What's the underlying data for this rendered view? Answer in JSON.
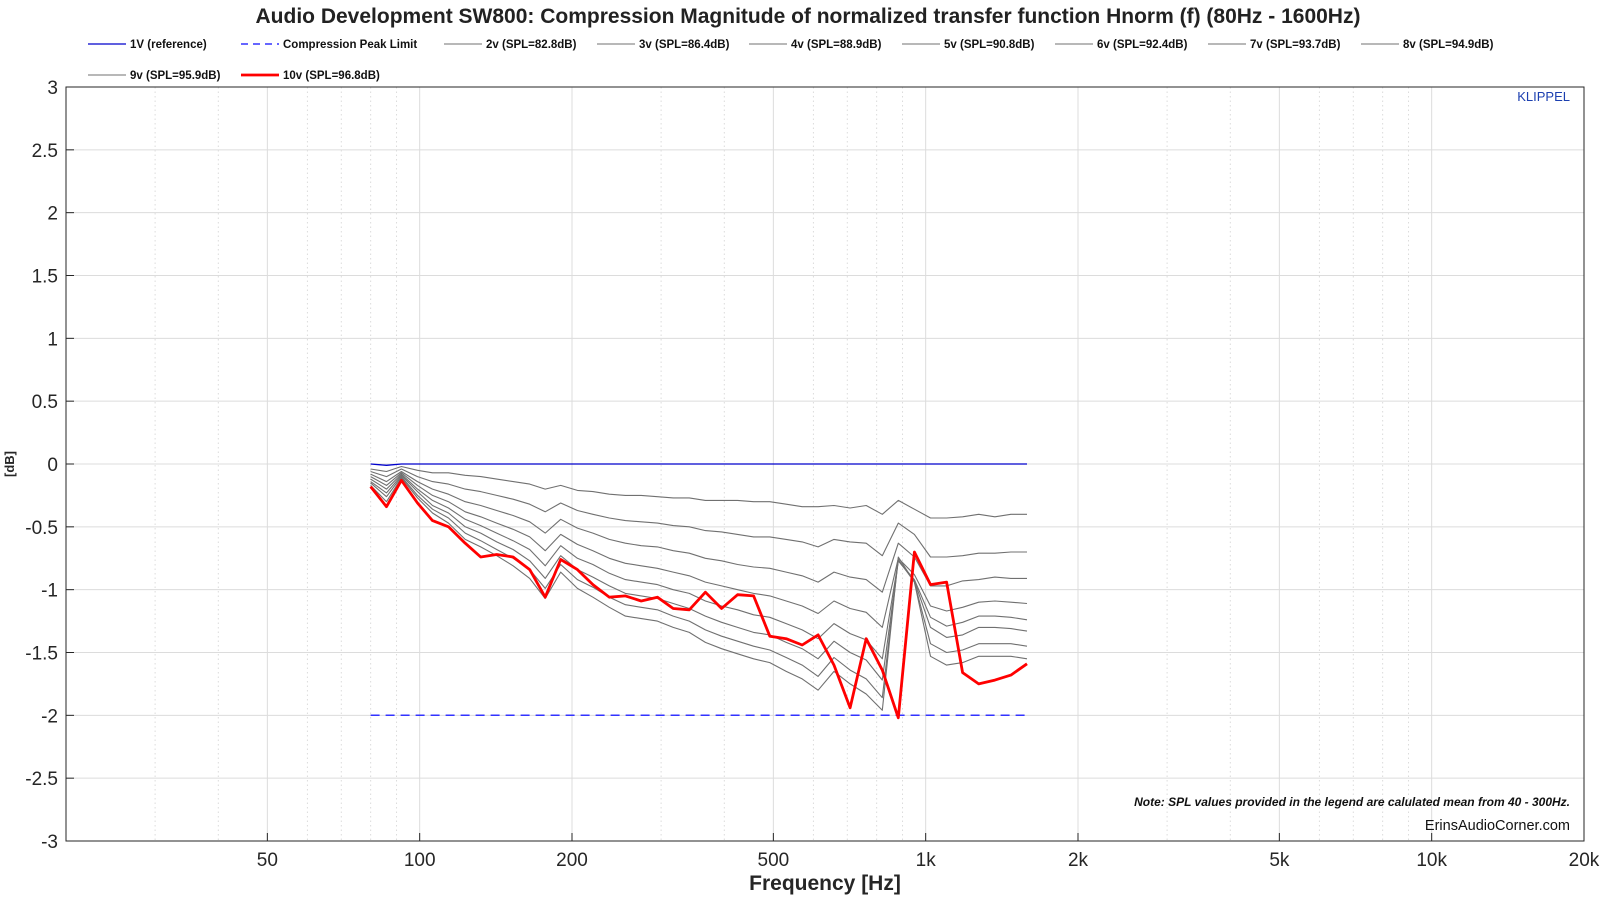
{
  "chart_data": {
    "type": "line",
    "title": "Audio Development SW800: Compression Magnitude of normalized transfer function Hnorm (f) (80Hz - 1600Hz)",
    "xlabel": "Frequency [Hz]",
    "ylabel": "[dB]",
    "x_scale": "log",
    "xlim": [
      20,
      20000
    ],
    "ylim": [
      -3,
      3
    ],
    "x_ticks": [
      50,
      100,
      200,
      500,
      1000,
      2000,
      5000,
      10000,
      20000
    ],
    "x_tick_labels": [
      "50",
      "100",
      "200",
      "500",
      "1k",
      "2k",
      "5k",
      "10k",
      "20k"
    ],
    "y_ticks": [
      3,
      2.5,
      2,
      1.5,
      1,
      0.5,
      0,
      -0.5,
      -1,
      -1.5,
      -2,
      -2.5,
      -3
    ],
    "y_tick_labels": [
      "3",
      "2.5",
      "2",
      "1.5",
      "1",
      "0.5",
      "0",
      "-0.5",
      "-1",
      "-1.5",
      "-2",
      "-2.5",
      "-3"
    ],
    "grid": true,
    "legend_position": "top",
    "annotations": {
      "klippel": "KLIPPEL",
      "note": "Note: SPL values provided in the legend are calulated mean from 40 - 300Hz.",
      "watermark": "ErinsAudioCorner.com"
    },
    "colors": {
      "reference": "#0000cc",
      "peak_limit": "#3333ff",
      "intermediate": "#707070",
      "final": "#ff0000",
      "grid": "#dcdcdc"
    },
    "x": [
      80,
      86,
      92,
      99,
      106,
      114,
      123,
      132,
      142,
      153,
      165,
      177,
      190,
      205,
      220,
      237,
      255,
      274,
      295,
      317,
      341,
      367,
      395,
      425,
      457,
      492,
      530,
      570,
      613,
      659,
      709,
      763,
      821,
      883,
      950,
      1022,
      1100,
      1183,
      1273,
      1370,
      1474,
      1586
    ],
    "series": [
      {
        "name": "1V (reference)",
        "style": "reference",
        "values": [
          0,
          -0.01,
          0,
          0,
          0,
          0,
          0,
          0,
          0,
          0,
          0,
          0,
          0,
          0,
          0,
          0,
          0,
          0,
          0,
          0,
          0,
          0,
          0,
          0,
          0,
          0,
          0,
          0,
          0,
          0,
          0,
          0,
          0,
          0,
          0,
          0,
          0,
          0,
          0,
          0,
          0,
          0
        ]
      },
      {
        "name": "Compression Peak Limit",
        "style": "dashed",
        "values": [
          -2,
          -2,
          -2,
          -2,
          -2,
          -2,
          -2,
          -2,
          -2,
          -2,
          -2,
          -2,
          -2,
          -2,
          -2,
          -2,
          -2,
          -2,
          -2,
          -2,
          -2,
          -2,
          -2,
          -2,
          -2,
          -2,
          -2,
          -2,
          -2,
          -2,
          -2,
          -2,
          -2,
          -2,
          -2,
          -2,
          -2,
          -2,
          -2,
          -2,
          -2,
          -2
        ]
      },
      {
        "name": "2v (SPL=82.8dB)",
        "style": "intermediate",
        "values": [
          -0.04,
          -0.06,
          -0.02,
          -0.05,
          -0.07,
          -0.07,
          -0.09,
          -0.1,
          -0.12,
          -0.14,
          -0.16,
          -0.2,
          -0.17,
          -0.21,
          -0.22,
          -0.24,
          -0.25,
          -0.25,
          -0.26,
          -0.27,
          -0.27,
          -0.29,
          -0.29,
          -0.29,
          -0.3,
          -0.3,
          -0.32,
          -0.34,
          -0.34,
          -0.33,
          -0.35,
          -0.33,
          -0.4,
          -0.29,
          -0.36,
          -0.43,
          -0.43,
          -0.42,
          -0.4,
          -0.42,
          -0.4,
          -0.4
        ]
      },
      {
        "name": "3v (SPL=86.4dB)",
        "style": "intermediate",
        "values": [
          -0.06,
          -0.1,
          -0.04,
          -0.1,
          -0.14,
          -0.16,
          -0.2,
          -0.22,
          -0.25,
          -0.28,
          -0.32,
          -0.38,
          -0.31,
          -0.37,
          -0.4,
          -0.43,
          -0.45,
          -0.46,
          -0.47,
          -0.49,
          -0.5,
          -0.53,
          -0.54,
          -0.56,
          -0.58,
          -0.58,
          -0.6,
          -0.62,
          -0.66,
          -0.6,
          -0.62,
          -0.63,
          -0.73,
          -0.47,
          -0.56,
          -0.74,
          -0.74,
          -0.73,
          -0.71,
          -0.71,
          -0.7,
          -0.7
        ]
      },
      {
        "name": "4v (SPL=88.9dB)",
        "style": "intermediate",
        "values": [
          -0.08,
          -0.14,
          -0.06,
          -0.14,
          -0.2,
          -0.24,
          -0.3,
          -0.33,
          -0.37,
          -0.41,
          -0.46,
          -0.55,
          -0.44,
          -0.51,
          -0.55,
          -0.6,
          -0.63,
          -0.65,
          -0.66,
          -0.69,
          -0.71,
          -0.75,
          -0.77,
          -0.8,
          -0.82,
          -0.83,
          -0.86,
          -0.89,
          -0.94,
          -0.86,
          -0.9,
          -0.92,
          -1.02,
          -0.63,
          -0.74,
          -0.97,
          -0.97,
          -0.93,
          -0.92,
          -0.9,
          -0.91,
          -0.91
        ]
      },
      {
        "name": "5v (SPL=90.8dB)",
        "style": "intermediate",
        "values": [
          -0.1,
          -0.17,
          -0.07,
          -0.17,
          -0.25,
          -0.3,
          -0.38,
          -0.42,
          -0.47,
          -0.52,
          -0.58,
          -0.69,
          -0.56,
          -0.64,
          -0.69,
          -0.75,
          -0.79,
          -0.81,
          -0.83,
          -0.86,
          -0.89,
          -0.94,
          -0.97,
          -1.0,
          -1.03,
          -1.05,
          -1.09,
          -1.13,
          -1.19,
          -1.09,
          -1.15,
          -1.18,
          -1.3,
          -0.75,
          -0.88,
          -1.13,
          -1.17,
          -1.14,
          -1.1,
          -1.09,
          -1.1,
          -1.11
        ]
      },
      {
        "name": "6v (SPL=92.4dB)",
        "style": "intermediate",
        "values": [
          -0.12,
          -0.2,
          -0.08,
          -0.2,
          -0.29,
          -0.35,
          -0.44,
          -0.49,
          -0.55,
          -0.61,
          -0.68,
          -0.81,
          -0.65,
          -0.75,
          -0.8,
          -0.87,
          -0.92,
          -0.94,
          -0.96,
          -1.0,
          -1.03,
          -1.09,
          -1.13,
          -1.16,
          -1.2,
          -1.22,
          -1.27,
          -1.32,
          -1.39,
          -1.27,
          -1.35,
          -1.4,
          -1.55,
          -0.77,
          -0.92,
          -1.22,
          -1.29,
          -1.26,
          -1.21,
          -1.21,
          -1.22,
          -1.24
        ]
      },
      {
        "name": "7v (SPL=93.7dB)",
        "style": "intermediate",
        "values": [
          -0.14,
          -0.23,
          -0.09,
          -0.22,
          -0.33,
          -0.39,
          -0.5,
          -0.55,
          -0.62,
          -0.68,
          -0.77,
          -0.91,
          -0.73,
          -0.84,
          -0.9,
          -0.97,
          -1.03,
          -1.05,
          -1.07,
          -1.11,
          -1.15,
          -1.21,
          -1.26,
          -1.3,
          -1.34,
          -1.36,
          -1.42,
          -1.47,
          -1.55,
          -1.41,
          -1.5,
          -1.56,
          -1.72,
          -0.77,
          -0.93,
          -1.3,
          -1.38,
          -1.36,
          -1.3,
          -1.3,
          -1.31,
          -1.33
        ]
      },
      {
        "name": "8v (SPL=94.9dB)",
        "style": "intermediate",
        "values": [
          -0.15,
          -0.26,
          -0.1,
          -0.25,
          -0.36,
          -0.43,
          -0.55,
          -0.61,
          -0.68,
          -0.75,
          -0.84,
          -0.99,
          -0.8,
          -0.92,
          -0.98,
          -1.06,
          -1.12,
          -1.14,
          -1.16,
          -1.21,
          -1.25,
          -1.32,
          -1.37,
          -1.41,
          -1.45,
          -1.48,
          -1.54,
          -1.6,
          -1.69,
          -1.54,
          -1.64,
          -1.71,
          -1.86,
          -0.76,
          -0.94,
          -1.43,
          -1.5,
          -1.48,
          -1.43,
          -1.43,
          -1.43,
          -1.45
        ]
      },
      {
        "name": "9v (SPL=95.9dB)",
        "style": "intermediate",
        "values": [
          -0.17,
          -0.3,
          -0.11,
          -0.27,
          -0.39,
          -0.47,
          -0.6,
          -0.66,
          -0.73,
          -0.81,
          -0.91,
          -1.07,
          -0.86,
          -0.99,
          -1.06,
          -1.14,
          -1.21,
          -1.23,
          -1.25,
          -1.3,
          -1.34,
          -1.42,
          -1.47,
          -1.51,
          -1.55,
          -1.58,
          -1.65,
          -1.71,
          -1.8,
          -1.65,
          -1.75,
          -1.83,
          -1.96,
          -0.74,
          -0.94,
          -1.53,
          -1.6,
          -1.58,
          -1.53,
          -1.53,
          -1.53,
          -1.55
        ]
      },
      {
        "name": "10v (SPL=96.8dB)",
        "style": "final",
        "values": [
          -0.18,
          -0.34,
          -0.13,
          -0.31,
          -0.45,
          -0.5,
          -0.63,
          -0.74,
          -0.72,
          -0.74,
          -0.84,
          -1.06,
          -0.76,
          -0.84,
          -0.96,
          -1.06,
          -1.05,
          -1.09,
          -1.06,
          -1.15,
          -1.16,
          -1.02,
          -1.15,
          -1.04,
          -1.05,
          -1.37,
          -1.39,
          -1.44,
          -1.36,
          -1.6,
          -1.94,
          -1.39,
          -1.64,
          -2.02,
          -0.7,
          -0.96,
          -0.94,
          -1.66,
          -1.75,
          -1.72,
          -1.68,
          -1.59
        ]
      }
    ]
  }
}
